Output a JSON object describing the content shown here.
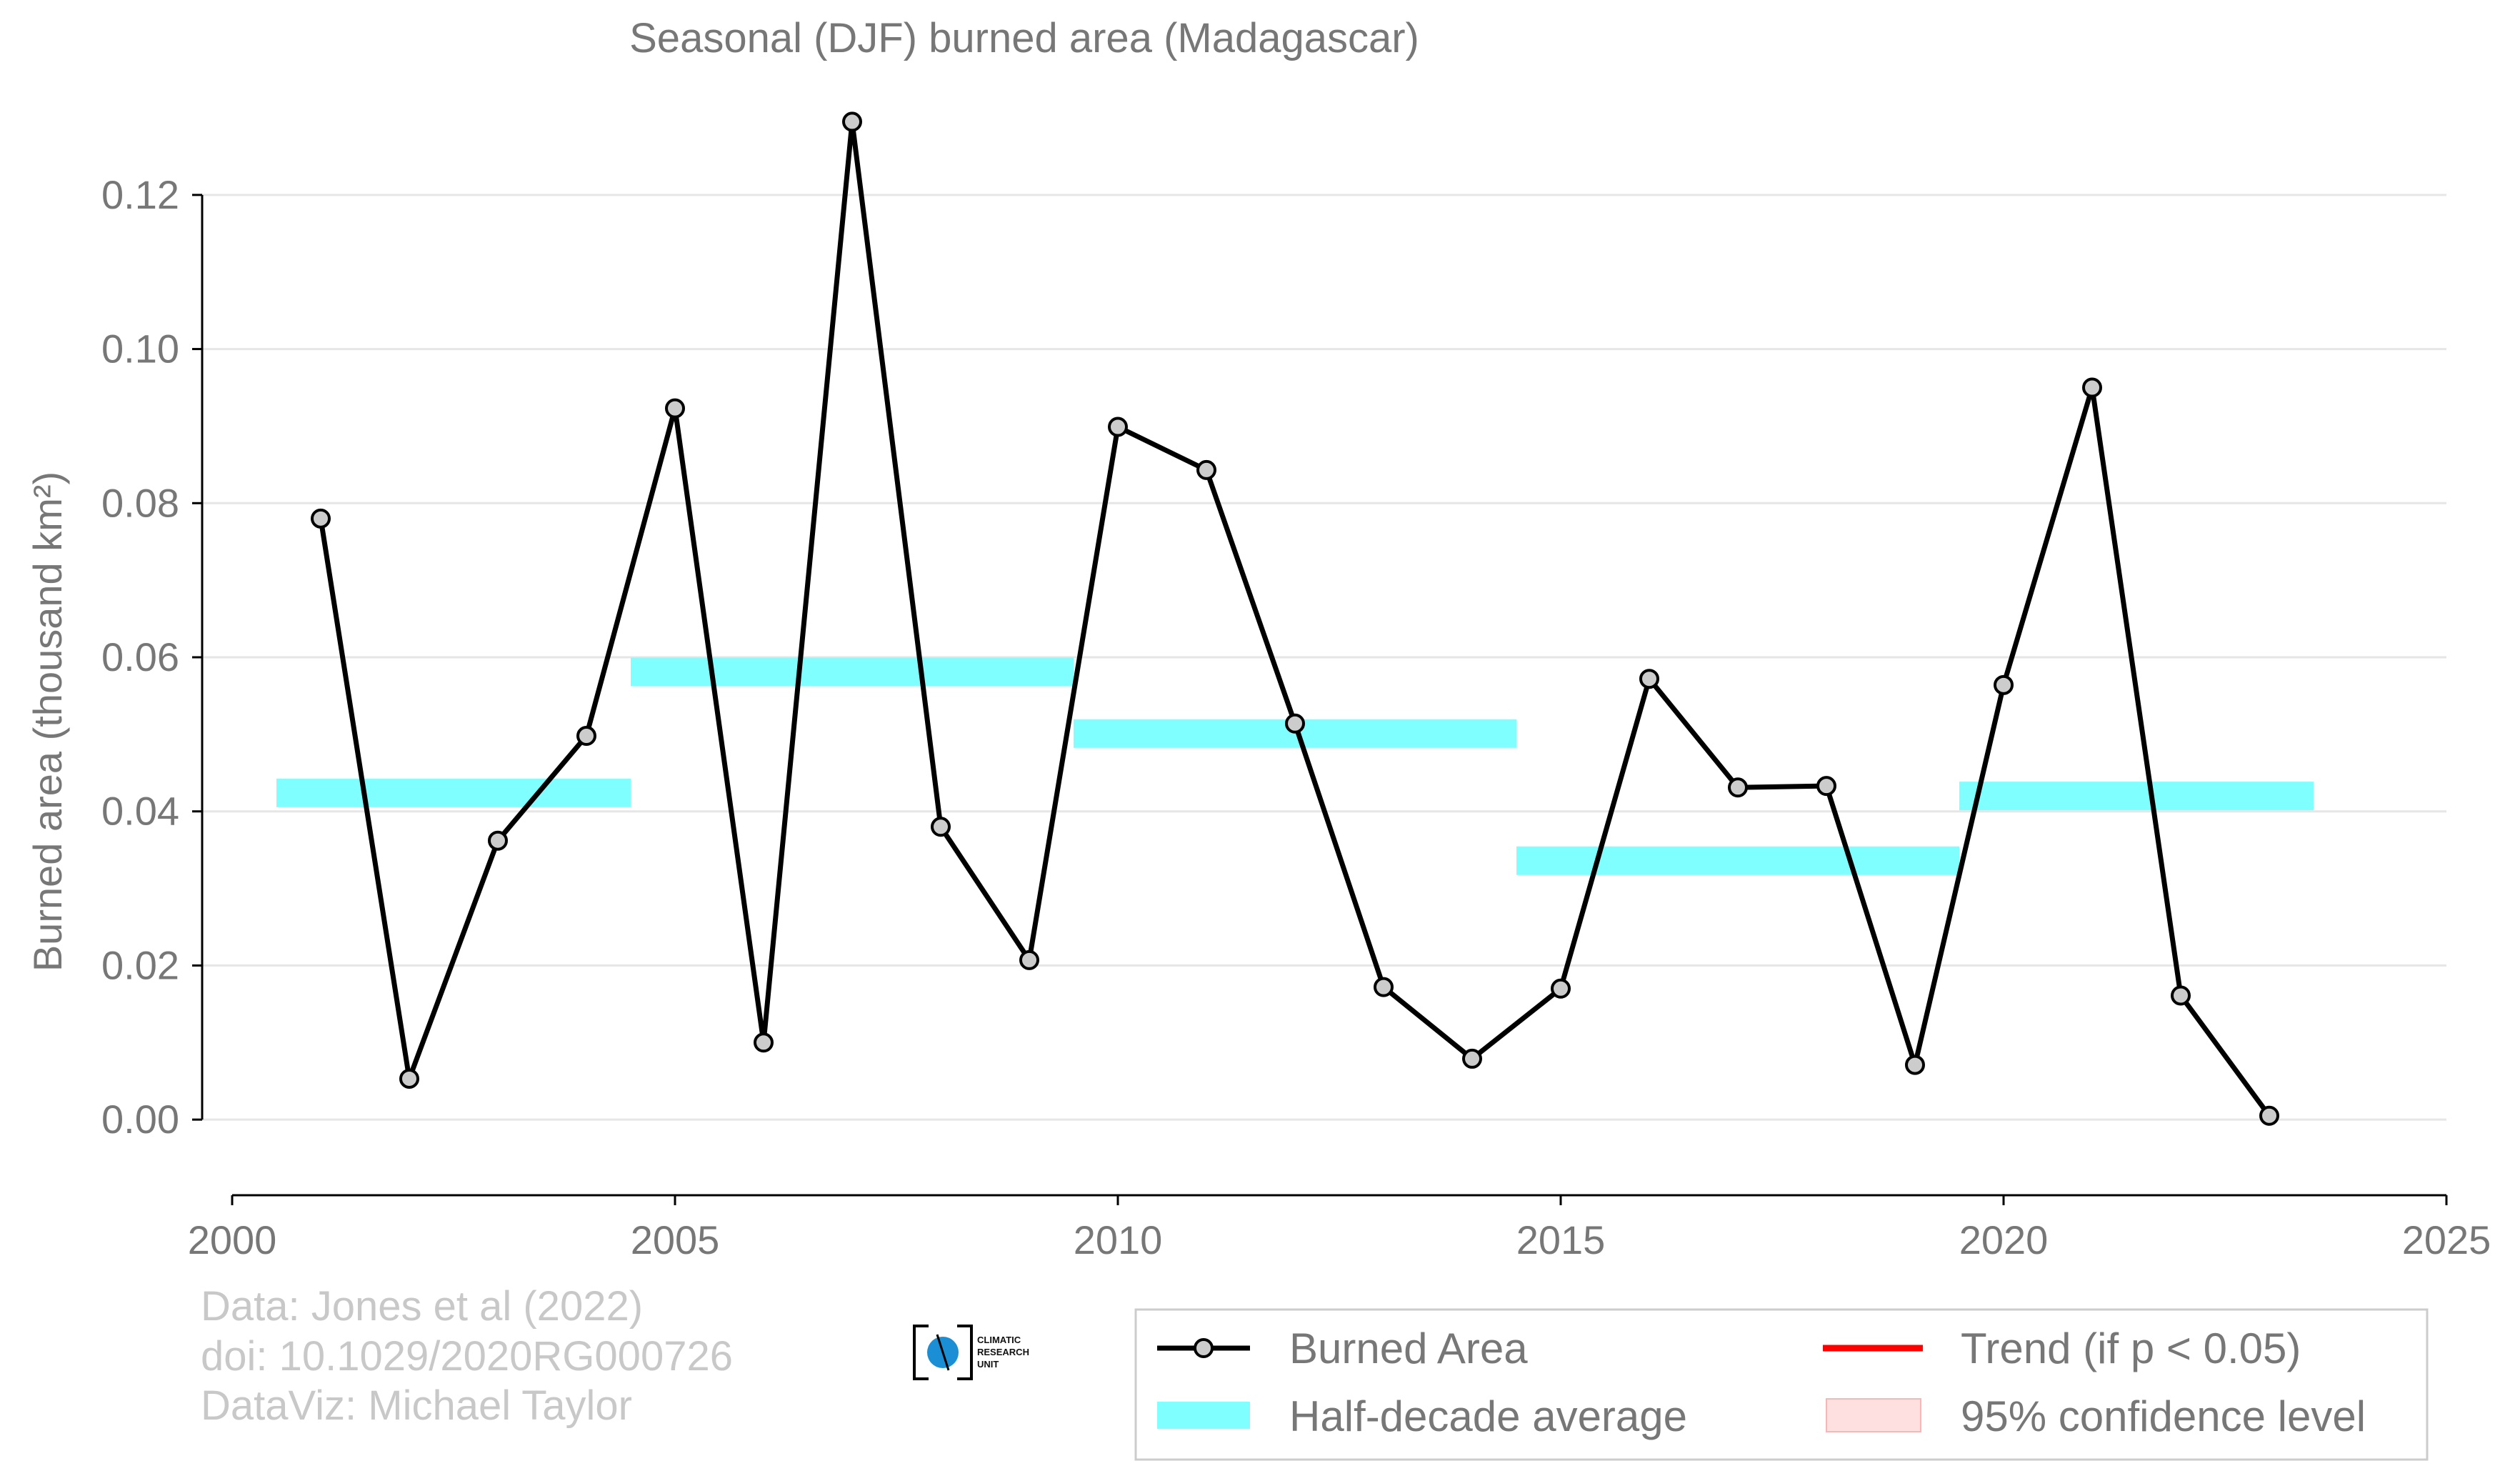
{
  "chart_data": {
    "type": "line",
    "title": "Seasonal (DJF) burned area (Madagascar)",
    "ylabel": "Burned area (thousand km²)",
    "xlabel": "",
    "xlim": [
      2000,
      2025
    ],
    "ylim": [
      -0.01,
      0.13
    ],
    "x_ticks": [
      2000,
      2005,
      2010,
      2015,
      2020,
      2025
    ],
    "y_ticks": [
      0.0,
      0.02,
      0.04,
      0.06,
      0.08,
      0.1,
      0.12
    ],
    "y_tick_labels": [
      "0.00",
      "0.02",
      "0.04",
      "0.06",
      "0.08",
      "0.10",
      "0.12"
    ],
    "grid": "horizontal",
    "series": [
      {
        "name": "Burned Area",
        "color": "#000000",
        "marker_fill": "#cccccc",
        "x": [
          2001,
          2002,
          2003,
          2004,
          2005,
          2006,
          2007,
          2008,
          2009,
          2010,
          2011,
          2012,
          2013,
          2014,
          2015,
          2016,
          2017,
          2018,
          2019,
          2020,
          2021,
          2022,
          2023
        ],
        "y": [
          0.078,
          0.0053,
          0.0362,
          0.0498,
          0.0923,
          0.01,
          0.1295,
          0.038,
          0.0207,
          0.0899,
          0.0843,
          0.0514,
          0.0172,
          0.0079,
          0.017,
          0.0572,
          0.0431,
          0.0433,
          0.0071,
          0.0564,
          0.095,
          0.0161,
          0.0005
        ]
      }
    ],
    "half_decade_average": {
      "name": "Half-decade average",
      "color": "#7fffff",
      "segments": [
        {
          "x_start": 2000.5,
          "x_end": 2004.5,
          "value": 0.0424
        },
        {
          "x_start": 2004.5,
          "x_end": 2009.5,
          "value": 0.0581
        },
        {
          "x_start": 2009.5,
          "x_end": 2014.5,
          "value": 0.0501
        },
        {
          "x_start": 2014.5,
          "x_end": 2019.5,
          "value": 0.0336
        },
        {
          "x_start": 2019.5,
          "x_end": 2023.5,
          "value": 0.042
        }
      ]
    },
    "legend": {
      "placement": "bottom-right",
      "entries": [
        {
          "label": "Burned Area",
          "symbol": "line-marker",
          "color": "#000000"
        },
        {
          "label": "Trend (if p < 0.05)",
          "symbol": "line",
          "color": "#ff0000"
        },
        {
          "label": "Half-decade average",
          "symbol": "patch",
          "color": "#7fffff"
        },
        {
          "label": "95% confidence level",
          "symbol": "patch",
          "color": "#ffe0e0"
        }
      ]
    }
  },
  "credits": {
    "line1": "Data: Jones et al (2022)",
    "line2": "doi: 10.1029/2020RG000726",
    "line3": "DataViz: Michael Taylor"
  },
  "logo": {
    "line1": "CLIMATIC",
    "line2": "RESEARCH",
    "line3": "UNIT",
    "color": "#1a8fd6"
  }
}
